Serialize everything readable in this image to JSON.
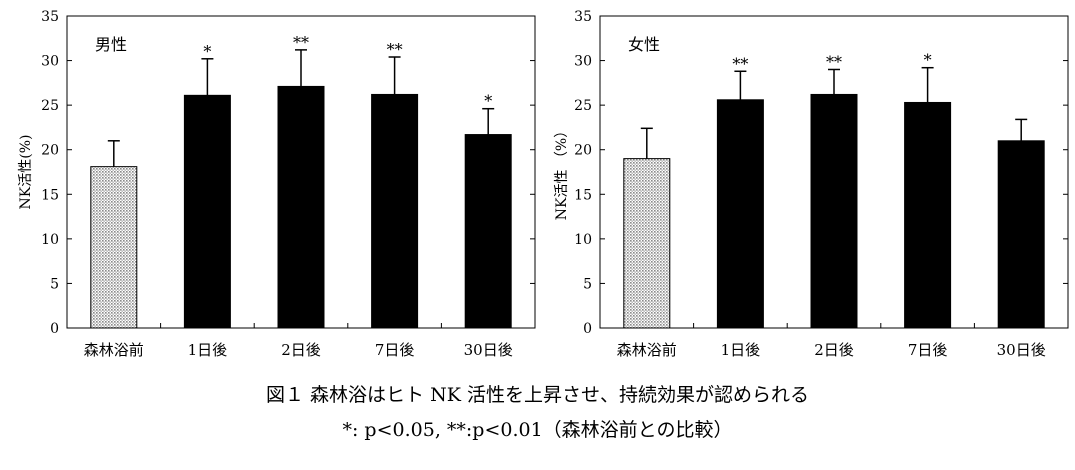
{
  "chart_data": [
    {
      "type": "bar",
      "title": "男性",
      "ylabel": "NK活性(%)",
      "categories": [
        "森林浴前",
        "1日後",
        "2日後",
        "7日後",
        "30日後"
      ],
      "values": [
        18.1,
        26.1,
        27.1,
        26.2,
        21.7
      ],
      "errors": [
        2.9,
        4.1,
        4.1,
        4.2,
        2.9
      ],
      "significance": [
        "",
        "*",
        "**",
        "**",
        "*"
      ],
      "fills": [
        "dotted",
        "solid",
        "solid",
        "solid",
        "solid"
      ],
      "ylim": [
        0,
        35
      ],
      "yticks": [
        0,
        5,
        10,
        15,
        20,
        25,
        30,
        35
      ]
    },
    {
      "type": "bar",
      "title": "女性",
      "ylabel": "NK活性 （%）",
      "categories": [
        "森林浴前",
        "1日後",
        "2日後",
        "7日後",
        "30日後"
      ],
      "values": [
        19.0,
        25.6,
        26.2,
        25.3,
        21.0
      ],
      "errors": [
        3.4,
        3.2,
        2.8,
        3.9,
        2.4
      ],
      "significance": [
        "",
        "**",
        "**",
        "*",
        ""
      ],
      "fills": [
        "dotted",
        "solid",
        "solid",
        "solid",
        "solid"
      ],
      "ylim": [
        0,
        35
      ],
      "yticks": [
        0,
        5,
        10,
        15,
        20,
        25,
        30,
        35
      ]
    }
  ],
  "caption": {
    "line1": "図１ 森林浴はヒト NK 活性を上昇させ、持続効果が認められる",
    "line2": "*: p<0.05, **:p<0.01（森林浴前との比較）"
  },
  "colors": {
    "bar": "#000000",
    "baseline_bar": "#c8c8c8",
    "axis": "#000000"
  }
}
